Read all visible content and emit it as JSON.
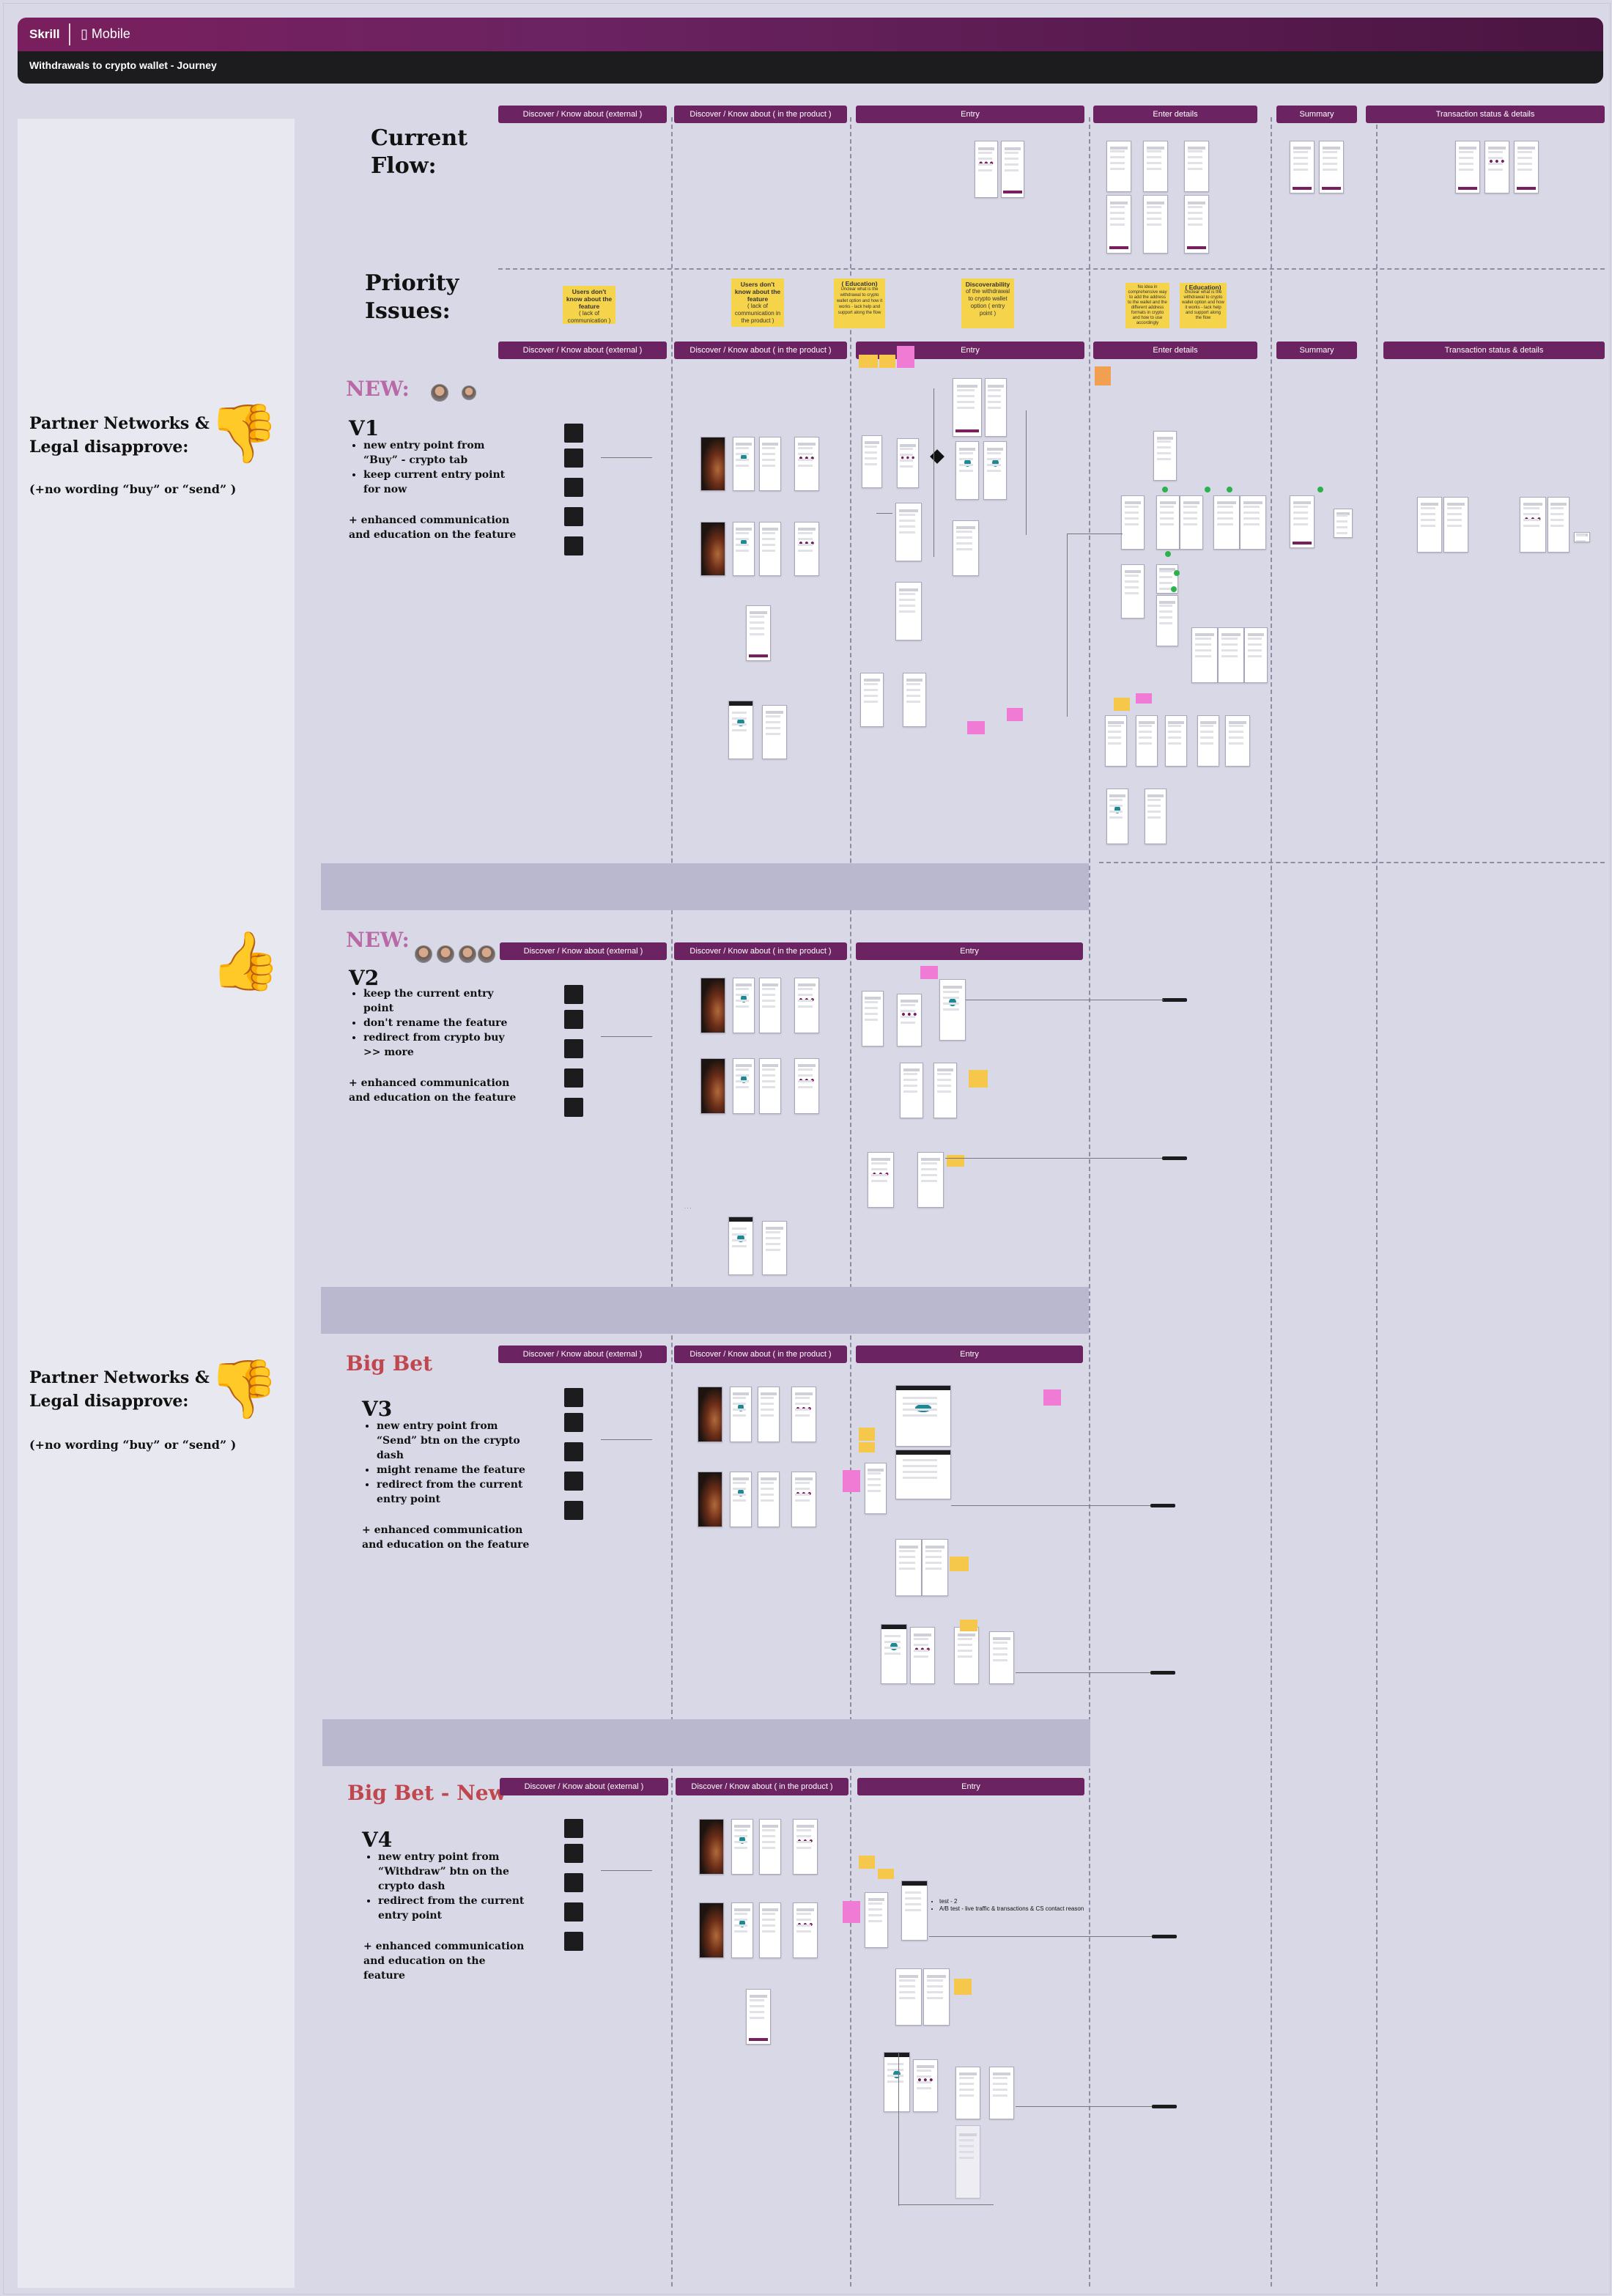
{
  "header": {
    "brand": "Skrill",
    "platform_label": "Mobile",
    "platform_icon": "phone-icon",
    "board_title": "Withdrawals to crypto wallet - Journey"
  },
  "current_flow": {
    "title_line1": "Current",
    "title_line2": "Flow:",
    "phases": [
      "Discover / Know about (external )",
      "Discover / Know about ( in the product )",
      "Entry",
      "Enter details",
      "Summary",
      "Transaction status & details"
    ]
  },
  "priority_issues": {
    "title_line1": "Priority",
    "title_line2": "Issues:",
    "notes": [
      {
        "bold": "Users don't know about the feature",
        "text": "( lack of communication )"
      },
      {
        "bold": "Users don't know about the feature",
        "text": "( lack of communication in the product )"
      },
      {
        "bold": "( Education)",
        "text": "Unclear what is the withdrawal to crypto wallet option and how it works - lack help and support along the flow"
      },
      {
        "bold": "Discoverability",
        "text": "of the withdrawal to crypto wallet option ( entry point )"
      },
      {
        "bold": "",
        "text": "No idea in comprehensive way to add the address to the wallet and the different address formats in crypto and how to use accordingly"
      },
      {
        "bold": "( Education)",
        "text": "Unclear what is the withdrawal to crypto wallet option and how it works - lack help and support along the flow"
      }
    ],
    "phases": [
      "Discover / Know about (external )",
      "Discover / Know about ( in the product )",
      "Entry",
      "Enter details",
      "Summary",
      "Transaction status & details"
    ]
  },
  "left_panel": {
    "disapprove_1": {
      "line1": "Partner Networks &",
      "line2": "Legal disapprove:",
      "note": "(+no wording “buy” or “send” )",
      "icon": "thumbs-down-icon"
    },
    "approve": {
      "icon": "thumbs-up-icon"
    },
    "disapprove_2": {
      "line1": "Partner Networks &",
      "line2": "Legal disapprove:",
      "note": "(+no wording “buy” or “send” )",
      "icon": "thumbs-down-icon"
    }
  },
  "v1": {
    "tag": "NEW:",
    "title": "V1",
    "bullets": [
      "new entry point from “Buy” - crypto tab",
      "keep current entry point for now"
    ],
    "enhancement": "+ enhanced communication and education on the feature",
    "phases": [
      "Discover / Know about (external )",
      "Discover / Know about ( in the product )",
      "Entry",
      "Enter details",
      "Summary",
      "Transaction status & details"
    ]
  },
  "v2": {
    "tag": "NEW:",
    "title": "V2",
    "bullets": [
      "keep the current entry point",
      "don't rename the feature",
      "redirect from crypto buy >> more"
    ],
    "enhancement": "+ enhanced communication and education on the feature",
    "phases": [
      "Discover / Know about (external )",
      "Discover / Know about ( in the product )",
      "Entry"
    ]
  },
  "v3": {
    "tag": "Big Bet",
    "title": "V3",
    "bullets": [
      "new entry point from “Send” btn on the crypto dash",
      "might rename the feature",
      "redirect from the current entry point"
    ],
    "enhancement": "+ enhanced communication and education on the feature",
    "phases": [
      "Discover / Know about (external )",
      "Discover / Know about ( in the product )",
      "Entry"
    ]
  },
  "v4": {
    "tag": "Big Bet - New",
    "title": "V4",
    "bullets": [
      "new entry point from “Withdraw” btn on the crypto dash",
      "redirect from the current entry point"
    ],
    "enhancement": "+ enhanced communication and education on the feature",
    "phases": [
      "Discover / Know about (external )",
      "Discover / Know about ( in the product )",
      "Entry"
    ],
    "test_notes": [
      "test - 2",
      "A/B test - live traffic & transactions & CS contact reason"
    ]
  },
  "colors": {
    "phase_bg": "#6b2361",
    "header_gradient_start": "#7a1f5e",
    "header_dark": "#1c1c1f",
    "canvas": "#d9d8e6",
    "left_panel": "#e8e8f0",
    "new_tag": "#b96aa6",
    "big_bet_tag": "#c0474e",
    "sticky_yellow": "#f5d44c",
    "sticky_pink": "#ef7bd4",
    "brand_purple": "#7a1f5e",
    "teal_accent": "#1b8a94"
  }
}
